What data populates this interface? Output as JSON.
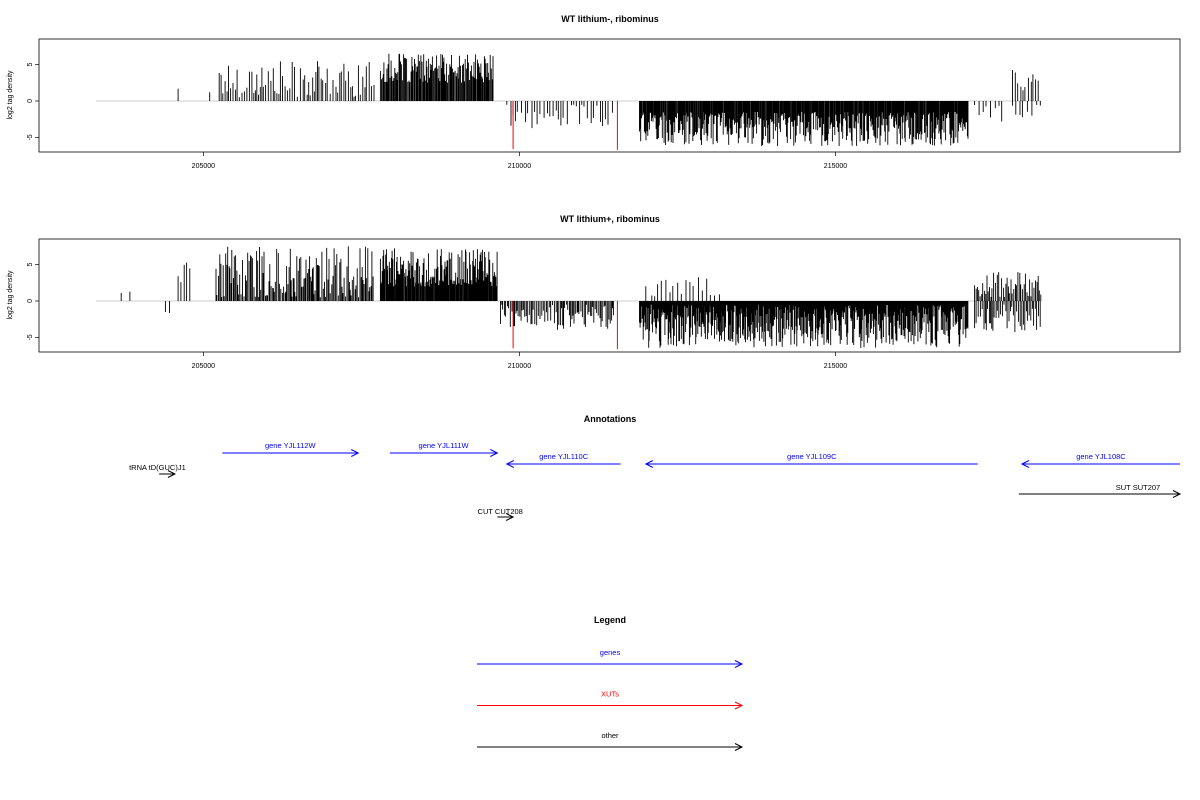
{
  "chart_data": [
    {
      "type": "bar",
      "title": "WT lithium-, ribominus",
      "ylabel": "log2 tag density",
      "xlim": [
        202400,
        220450
      ],
      "ylim": [
        -7,
        8.5
      ],
      "x_ticks": [
        205000,
        210000,
        215000
      ],
      "x_tick_labels": [
        "205000",
        "210000",
        "215000"
      ],
      "y_ticks": [
        -5,
        0,
        5
      ],
      "y_tick_labels": [
        "-5",
        "0",
        "5"
      ],
      "baseline_range": [
        203300,
        218250
      ],
      "regions": [
        {
          "x": [
            204600,
            204650
          ],
          "sign": 1,
          "min": 1.5,
          "max": 2.5,
          "step": 40
        },
        {
          "x": [
            205100,
            205120
          ],
          "sign": 1,
          "min": 1,
          "max": 1.5,
          "step": 30
        },
        {
          "x": [
            205250,
            207700
          ],
          "sign": 1,
          "min": 0.5,
          "max": 5.5,
          "step": 35
        },
        {
          "x": [
            207800,
            209600
          ],
          "sign": 1,
          "min": 2.5,
          "max": 6.5,
          "step": 14
        },
        {
          "x": [
            209800,
            211500
          ],
          "sign": -1,
          "min": 0.5,
          "max": 3.8,
          "step": 50
        },
        {
          "x": [
            211900,
            217100
          ],
          "sign": -1,
          "min": 1.5,
          "max": 6.2,
          "step": 12
        },
        {
          "x": [
            217200,
            217700
          ],
          "sign": -1,
          "min": 0.5,
          "max": 3.5,
          "step": 60
        },
        {
          "x": [
            217800,
            218250
          ],
          "sign": 1,
          "min": 1,
          "max": 4.5,
          "step": 40
        },
        {
          "x": [
            217800,
            218250
          ],
          "sign": -1,
          "min": 0.5,
          "max": 2.5,
          "step": 60
        }
      ],
      "highlights": [
        {
          "x": 209900,
          "y": -6.6,
          "color": "#ff0000"
        },
        {
          "x": 211550,
          "y": -6.7,
          "color": "#ff0000"
        }
      ]
    },
    {
      "type": "bar",
      "title": "WT lithium+, ribominus",
      "ylabel": "log2 tag density",
      "xlim": [
        202400,
        220450
      ],
      "ylim": [
        -7,
        8.5
      ],
      "x_ticks": [
        205000,
        210000,
        215000
      ],
      "x_tick_labels": [
        "205000",
        "210000",
        "215000"
      ],
      "y_ticks": [
        -5,
        0,
        5
      ],
      "y_tick_labels": [
        "-5",
        "0",
        "5"
      ],
      "baseline_range": [
        203300,
        218250
      ],
      "regions": [
        {
          "x": [
            203700,
            203850
          ],
          "sign": 1,
          "min": 1,
          "max": 1.5,
          "step": 100
        },
        {
          "x": [
            204400,
            204500
          ],
          "sign": -1,
          "min": 1.5,
          "max": 2.5,
          "step": 50
        },
        {
          "x": [
            204600,
            204800
          ],
          "sign": 1,
          "min": 1.5,
          "max": 5.5,
          "step": 50
        },
        {
          "x": [
            205200,
            207700
          ],
          "sign": 1,
          "min": 0.5,
          "max": 7.5,
          "step": 18
        },
        {
          "x": [
            207800,
            209650
          ],
          "sign": 1,
          "min": 2,
          "max": 7.3,
          "step": 12
        },
        {
          "x": [
            209700,
            211500
          ],
          "sign": -1,
          "min": 0.5,
          "max": 4,
          "step": 22
        },
        {
          "x": [
            211900,
            217100
          ],
          "sign": -1,
          "min": 0.5,
          "max": 6.5,
          "step": 10
        },
        {
          "x": [
            212000,
            213200
          ],
          "sign": 1,
          "min": 0.5,
          "max": 3.5,
          "step": 70
        },
        {
          "x": [
            217200,
            218250
          ],
          "sign": 1,
          "min": 0.5,
          "max": 4,
          "step": 22
        },
        {
          "x": [
            217200,
            218250
          ],
          "sign": -1,
          "min": 0.5,
          "max": 4.5,
          "step": 25
        }
      ],
      "highlights": [
        {
          "x": 209900,
          "y": -6.5,
          "color": "#ff0000"
        },
        {
          "x": 211550,
          "y": -6.6,
          "color": "#ff0000"
        }
      ]
    }
  ],
  "annotations": {
    "title": "Annotations",
    "xlim": [
      202400,
      220450
    ],
    "items": [
      {
        "label": "gene YJL112W",
        "start": 205300,
        "end": 207450,
        "row": 0,
        "strand": "+",
        "color": "#0000ff"
      },
      {
        "label": "gene YJL111W",
        "start": 207950,
        "end": 209650,
        "row": 0,
        "strand": "+",
        "color": "#0000ff"
      },
      {
        "label": "gene YJL110C",
        "start": 209800,
        "end": 211600,
        "row": 1,
        "strand": "-",
        "color": "#0000ff"
      },
      {
        "label": "gene YJL109C",
        "start": 212000,
        "end": 217250,
        "row": 1,
        "strand": "-",
        "color": "#0000ff"
      },
      {
        "label": "gene YJL108C",
        "start": 217950,
        "end": 220450,
        "row": 1,
        "strand": "-",
        "color": "#0000ff"
      },
      {
        "label": "tRNA tD(GUC)J1",
        "start": 204300,
        "end": 204550,
        "row": 2,
        "strand": "+",
        "color": "#000000"
      },
      {
        "label": "SUT SUT207",
        "start": 217900,
        "end": 220450,
        "row": 3,
        "strand": "+",
        "color": "#000000"
      },
      {
        "label": "CUT CUT208",
        "start": 209650,
        "end": 209900,
        "row": 4,
        "strand": "+",
        "color": "#000000"
      }
    ]
  },
  "legend": {
    "title": "Legend",
    "items": [
      {
        "label": "genes",
        "color": "#0000ff"
      },
      {
        "label": "XUTs",
        "color": "#ff0000"
      },
      {
        "label": "other",
        "color": "#000000"
      }
    ]
  }
}
